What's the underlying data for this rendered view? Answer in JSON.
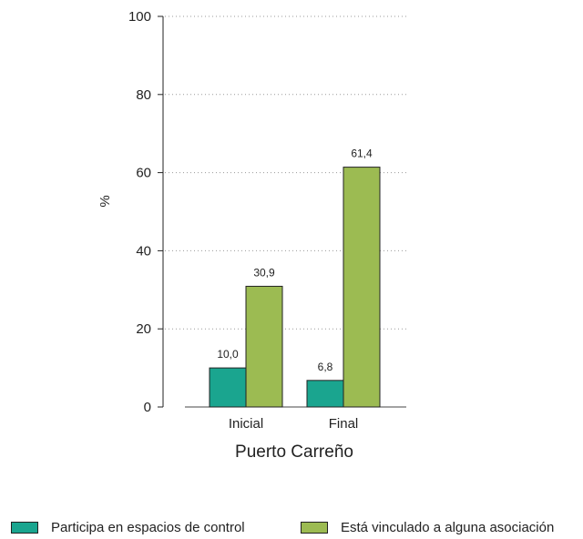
{
  "chart_data": {
    "type": "bar",
    "ylabel": "%",
    "ylim": [
      0,
      100
    ],
    "yticks": [
      "0",
      "20",
      "40",
      "60",
      "80",
      "100"
    ],
    "group_label": "Puerto Carreño",
    "categories": [
      "Inicial",
      "Final"
    ],
    "series": [
      {
        "name": "Participa en espacios de control",
        "color": "#1aa58f",
        "values": [
          10.0,
          6.8
        ],
        "labels": [
          "10,0",
          "6,8"
        ]
      },
      {
        "name": "Está vinculado a alguna asociación",
        "color": "#9cbb52",
        "values": [
          30.9,
          61.4
        ],
        "labels": [
          "30,9",
          "61,4"
        ]
      }
    ],
    "grid": "horizontal dotted",
    "legend_position": "bottom"
  }
}
